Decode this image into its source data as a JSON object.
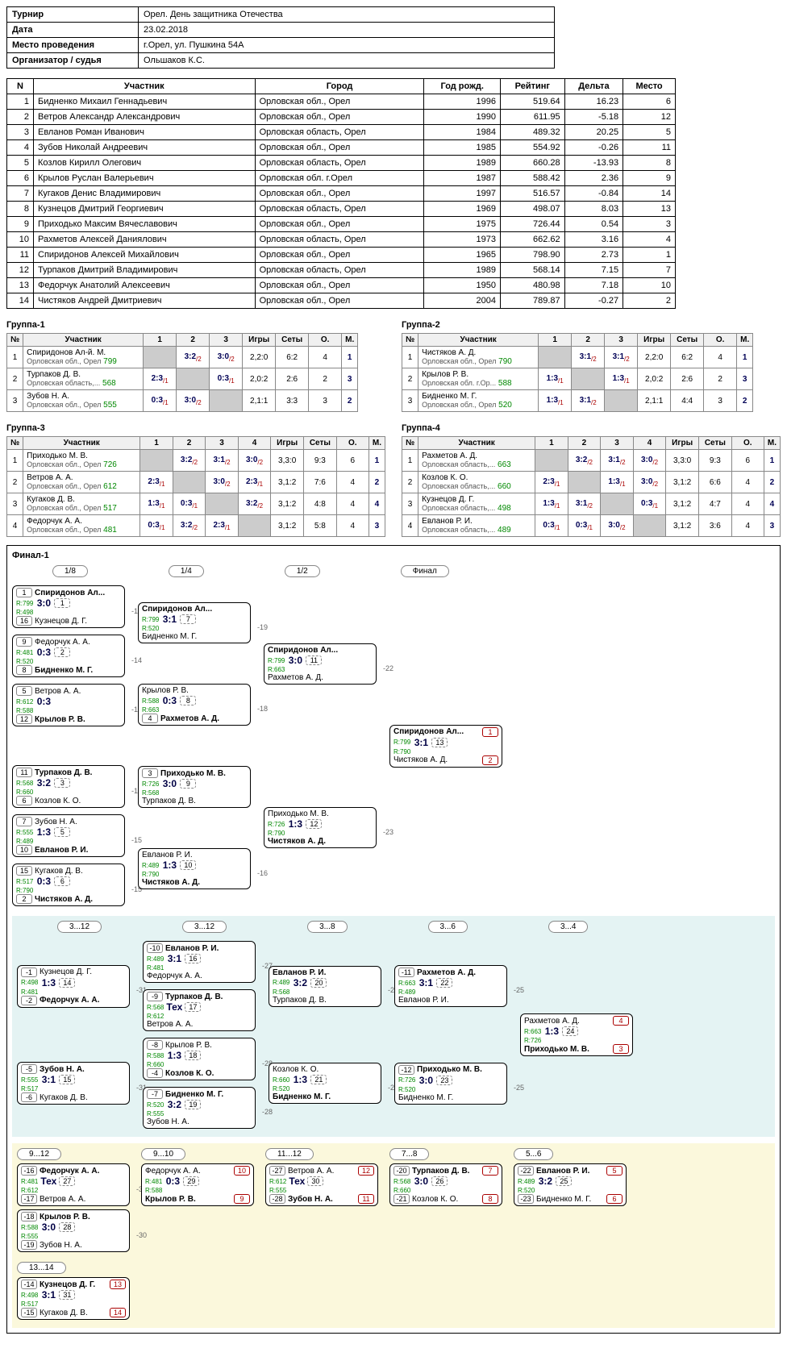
{
  "info": {
    "rows": [
      [
        "Турнир",
        "Орел. День защитника Отечества"
      ],
      [
        "Дата",
        "23.02.2018"
      ],
      [
        "Место проведения",
        "г.Орел, ул. Пушкина 54А"
      ],
      [
        "Организатор / судья",
        "Ольшаков К.С."
      ]
    ]
  },
  "participants": {
    "headers": [
      "N",
      "Участник",
      "Город",
      "Год рожд.",
      "Рейтинг",
      "Дельта",
      "Место"
    ],
    "rows": [
      [
        "1",
        "Бидненко Михаил Геннадьевич",
        "Орловская обл., Орел",
        "1996",
        "519.64",
        "16.23",
        "6"
      ],
      [
        "2",
        "Ветров Александр Александрович",
        "Орловская обл., Орел",
        "1990",
        "611.95",
        "-5.18",
        "12"
      ],
      [
        "3",
        "Евланов Роман Иванович",
        "Орловская область, Орел",
        "1984",
        "489.32",
        "20.25",
        "5"
      ],
      [
        "4",
        "Зубов Николай Андреевич",
        "Орловская обл., Орел",
        "1985",
        "554.92",
        "-0.26",
        "11"
      ],
      [
        "5",
        "Козлов Кирилл Олегович",
        "Орловская область, Орел",
        "1989",
        "660.28",
        "-13.93",
        "8"
      ],
      [
        "6",
        "Крылов Руслан Валерьевич",
        "Орловская обл. г.Орел",
        "1987",
        "588.42",
        "2.36",
        "9"
      ],
      [
        "7",
        "Кугаков Денис Владимирович",
        "Орловская обл., Орел",
        "1997",
        "516.57",
        "-0.84",
        "14"
      ],
      [
        "8",
        "Кузнецов Дмитрий Георгиевич",
        "Орловская область, Орел",
        "1969",
        "498.07",
        "8.03",
        "13"
      ],
      [
        "9",
        "Приходько Максим Вячеславович",
        "Орловская обл., Орел",
        "1975",
        "726.44",
        "0.54",
        "3"
      ],
      [
        "10",
        "Рахметов Алексей Даниялович",
        "Орловская область, Орел",
        "1973",
        "662.62",
        "3.16",
        "4"
      ],
      [
        "11",
        "Спиридонов Алексей Михайлович",
        "Орловская обл., Орел",
        "1965",
        "798.90",
        "2.73",
        "1"
      ],
      [
        "12",
        "Турпаков Дмитрий Владимирович",
        "Орловская область, Орел",
        "1989",
        "568.14",
        "7.15",
        "7"
      ],
      [
        "13",
        "Федорчук Анатолий Алексеевич",
        "Орловская обл., Орел",
        "1950",
        "480.98",
        "7.18",
        "10"
      ],
      [
        "14",
        "Чистяков Андрей Дмитриевич",
        "Орловская обл., Орел",
        "2004",
        "789.87",
        "-0.27",
        "2"
      ]
    ]
  },
  "groups": [
    {
      "title": "Группа-1",
      "cols": [
        "№",
        "Участник",
        "1",
        "2",
        "3",
        "Игры",
        "Сеты",
        "О.",
        "М."
      ],
      "rows": [
        {
          "n": "1",
          "name": "Спиридонов Ал-й. М.",
          "sub": "Орловская обл., Орел",
          "rat": "799",
          "cells": [
            "diag",
            "3:2/2",
            "3:0/2"
          ],
          "games": "2,2:0",
          "sets": "6:2",
          "pts": "4",
          "place": "1"
        },
        {
          "n": "2",
          "name": "Турпаков Д. В.",
          "sub": "Орловская область,...",
          "rat": "568",
          "cells": [
            "2:3/1",
            "diag",
            "0:3/1"
          ],
          "games": "2,0:2",
          "sets": "2:6",
          "pts": "2",
          "place": "3"
        },
        {
          "n": "3",
          "name": "Зубов Н. А.",
          "sub": "Орловская обл., Орел",
          "rat": "555",
          "cells": [
            "0:3/1",
            "3:0/2",
            "diag"
          ],
          "games": "2,1:1",
          "sets": "3:3",
          "pts": "3",
          "place": "2"
        }
      ]
    },
    {
      "title": "Группа-2",
      "cols": [
        "№",
        "Участник",
        "1",
        "2",
        "3",
        "Игры",
        "Сеты",
        "О.",
        "М."
      ],
      "rows": [
        {
          "n": "1",
          "name": "Чистяков А. Д.",
          "sub": "Орловская обл., Орел",
          "rat": "790",
          "cells": [
            "diag",
            "3:1/2",
            "3:1/2"
          ],
          "games": "2,2:0",
          "sets": "6:2",
          "pts": "4",
          "place": "1"
        },
        {
          "n": "2",
          "name": "Крылов Р. В.",
          "sub": "Орловская обл. г.Ор...",
          "rat": "588",
          "cells": [
            "1:3/1",
            "diag",
            "1:3/1"
          ],
          "games": "2,0:2",
          "sets": "2:6",
          "pts": "2",
          "place": "3"
        },
        {
          "n": "3",
          "name": "Бидненко М. Г.",
          "sub": "Орловская обл., Орел",
          "rat": "520",
          "cells": [
            "1:3/1",
            "3:1/2",
            "diag"
          ],
          "games": "2,1:1",
          "sets": "4:4",
          "pts": "3",
          "place": "2"
        }
      ]
    },
    {
      "title": "Группа-3",
      "cols": [
        "№",
        "Участник",
        "1",
        "2",
        "3",
        "4",
        "Игры",
        "Сеты",
        "О.",
        "М."
      ],
      "rows": [
        {
          "n": "1",
          "name": "Приходько М. В.",
          "sub": "Орловская обл., Орел",
          "rat": "726",
          "cells": [
            "diag",
            "3:2/2",
            "3:1/2",
            "3:0/2"
          ],
          "games": "3,3:0",
          "sets": "9:3",
          "pts": "6",
          "place": "1"
        },
        {
          "n": "2",
          "name": "Ветров А. А.",
          "sub": "Орловская обл., Орел",
          "rat": "612",
          "cells": [
            "2:3/1",
            "diag",
            "3:0/2",
            "2:3/1"
          ],
          "games": "3,1:2",
          "sets": "7:6",
          "pts": "4",
          "place": "2"
        },
        {
          "n": "3",
          "name": "Кугаков Д. В.",
          "sub": "Орловская обл., Орел",
          "rat": "517",
          "cells": [
            "1:3/1",
            "0:3/1",
            "diag",
            "3:2/2"
          ],
          "games": "3,1:2",
          "sets": "4:8",
          "pts": "4",
          "place": "4"
        },
        {
          "n": "4",
          "name": "Федорчук А. А.",
          "sub": "Орловская обл., Орел",
          "rat": "481",
          "cells": [
            "0:3/1",
            "3:2/2",
            "2:3/1",
            "diag"
          ],
          "games": "3,1:2",
          "sets": "5:8",
          "pts": "4",
          "place": "3"
        }
      ]
    },
    {
      "title": "Группа-4",
      "cols": [
        "№",
        "Участник",
        "1",
        "2",
        "3",
        "4",
        "Игры",
        "Сеты",
        "О.",
        "М."
      ],
      "rows": [
        {
          "n": "1",
          "name": "Рахметов А. Д.",
          "sub": "Орловская область,...",
          "rat": "663",
          "cells": [
            "diag",
            "3:2/2",
            "3:1/2",
            "3:0/2"
          ],
          "games": "3,3:0",
          "sets": "9:3",
          "pts": "6",
          "place": "1"
        },
        {
          "n": "2",
          "name": "Козлов К. О.",
          "sub": "Орловская область,...",
          "rat": "660",
          "cells": [
            "2:3/1",
            "diag",
            "1:3/1",
            "3:0/2"
          ],
          "games": "3,1:2",
          "sets": "6:6",
          "pts": "4",
          "place": "2"
        },
        {
          "n": "3",
          "name": "Кузнецов Д. Г.",
          "sub": "Орловская область,...",
          "rat": "498",
          "cells": [
            "1:3/1",
            "3:1/2",
            "diag",
            "0:3/1"
          ],
          "games": "3,1:2",
          "sets": "4:7",
          "pts": "4",
          "place": "4"
        },
        {
          "n": "4",
          "name": "Евланов Р. И.",
          "sub": "Орловская область,...",
          "rat": "489",
          "cells": [
            "0:3/1",
            "0:3/1",
            "3:0/2",
            "diag"
          ],
          "games": "3,1:2",
          "sets": "3:6",
          "pts": "4",
          "place": "3"
        }
      ]
    }
  ],
  "final": {
    "title": "Финал-1",
    "rounds": [
      "1/8",
      "1/4",
      "1/2",
      "Финал"
    ],
    "r8": [
      {
        "s1": "1",
        "p1": "Спиридонов Ал...",
        "r1": "R:799",
        "s2": "16",
        "p2": "Кузнецов Д. Г.",
        "r2": "R:498",
        "sc": "3:0",
        "mn": "1",
        "tag": "-14",
        "w": 1
      },
      {
        "s1": "9",
        "p1": "Федорчук А. А.",
        "r1": "R:481",
        "s2": "8",
        "p2": "Бидненко М. Г.",
        "r2": "R:520",
        "sc": "0:3",
        "mn": "2",
        "tag": "-14",
        "w": 2
      },
      {
        "s1": "5",
        "p1": "Ветров А. А.",
        "r1": "R:612",
        "s2": "12",
        "p2": "Крылов Р. В.",
        "r2": "R:588",
        "sc": "0:3",
        "mn": "",
        "tag": "-17",
        "w": 2
      },
      {
        "s1": "",
        "p1": "",
        "r1": "",
        "s2": "4",
        "p2": "",
        "r2": "",
        "sc": "",
        "mn": "",
        "tag": "",
        "hidden": true
      },
      {
        "s1": "11",
        "p1": "Турпаков Д. В.",
        "r1": "R:568",
        "s2": "6",
        "p2": "Козлов К. О.",
        "r2": "R:660",
        "sc": "3:2",
        "mn": "3",
        "tag": "-18",
        "w": 1
      },
      {
        "s1": "7",
        "p1": "Зубов Н. А.",
        "r1": "R:555",
        "s2": "10",
        "p2": "Евланов Р. И.",
        "r2": "R:489",
        "sc": "1:3",
        "mn": "5",
        "tag": "-15",
        "w": 2
      },
      {
        "s1": "15",
        "p1": "Кугаков Д. В.",
        "r1": "R:517",
        "s2": "2",
        "p2": "Чистяков А. Д.",
        "r2": "R:790",
        "sc": "0:3",
        "mn": "6",
        "tag": "-15",
        "w": 2
      }
    ],
    "r4": [
      {
        "p1": "Спиридонов Ал...",
        "r1": "R:799",
        "p2": "Бидненко М. Г.",
        "r2": "R:520",
        "sc": "3:1",
        "mn": "7",
        "tag": "-19",
        "w": 1
      },
      {
        "p1": "Крылов Р. В.",
        "r1": "R:588",
        "p2": "Рахметов А. Д.",
        "r2": "R:663",
        "sc": "0:3",
        "mn": "8",
        "tag": "-18",
        "s2": "4",
        "w": 2
      },
      {
        "p1": "Приходько М. В.",
        "r1": "R:726",
        "p2": "Турпаков Д. В.",
        "r2": "R:568",
        "sc": "3:0",
        "mn": "9",
        "tag": "",
        "s1": "3",
        "w": 1
      },
      {
        "p1": "Евланов Р. И.",
        "r1": "R:489",
        "p2": "Чистяков А. Д.",
        "r2": "R:790",
        "sc": "1:3",
        "mn": "10",
        "tag": "-16",
        "w": 2
      }
    ],
    "r2": [
      {
        "p1": "Спиридонов Ал...",
        "r1": "R:799",
        "p2": "Рахметов А. Д.",
        "r2": "R:663",
        "sc": "3:0",
        "mn": "11",
        "tag": "-22",
        "w": 1
      },
      {
        "p1": "Приходько М. В.",
        "r1": "R:726",
        "p2": "Чистяков А. Д.",
        "r2": "R:790",
        "sc": "1:3",
        "mn": "12",
        "tag": "-23",
        "w": 2
      }
    ],
    "rf": [
      {
        "p1": "Спиридонов Ал...",
        "r1": "R:799",
        "p2": "Чистяков А. Д.",
        "r2": "R:790",
        "sc": "3:1",
        "mn": "13",
        "w": 1,
        "pl1": "1",
        "pl2": "2"
      }
    ],
    "cons1": {
      "hdrs": [
        "3...12",
        "3...12",
        "3...8",
        "3...6",
        "3...4"
      ],
      "c1": [
        {
          "s1": "-1",
          "p1": "Кузнецов Д. Г.",
          "r1": "R:498",
          "s2": "-2",
          "p2": "Федорчук А. А.",
          "r2": "R:481",
          "sc": "1:3",
          "mn": "14",
          "tag": "-31",
          "w": 2
        },
        {
          "s1": "-5",
          "p1": "Зубов Н. А.",
          "r1": "R:555",
          "s2": "-6",
          "p2": "Кугаков Д. В.",
          "r2": "R:517",
          "sc": "3:1",
          "mn": "15",
          "tag": "-31",
          "w": 1
        }
      ],
      "c2": [
        {
          "s1": "-10",
          "p1": "Евланов Р. И.",
          "r1": "R:489",
          "p2": "Федорчук А. А.",
          "r2": "R:481",
          "sc": "3:1",
          "mn": "16",
          "tag": "-27",
          "w": 1
        },
        {
          "s1": "-9",
          "p1": "Турпаков Д. В.",
          "r1": "R:568",
          "p2": "Ветров А. А.",
          "r2": "R:612",
          "sc": "Тех",
          "mn": "17",
          "tag": "",
          "w": 1
        },
        {
          "s1": "-8",
          "p1": "Крылов Р. В.",
          "r1": "R:588",
          "s2": "-4",
          "p2": "Козлов К. О.",
          "r2": "R:660",
          "sc": "1:3",
          "mn": "18",
          "tag": "-28",
          "w": 2
        },
        {
          "s1": "-7",
          "p1": "Бидненко М. Г.",
          "r1": "R:520",
          "p2": "Зубов Н. А.",
          "r2": "R:555",
          "sc": "3:2",
          "mn": "19",
          "tag": "-28",
          "w": 1
        }
      ],
      "c3": [
        {
          "p1": "Евланов Р. И.",
          "r1": "R:489",
          "p2": "Турпаков Д. В.",
          "r2": "R:568",
          "sc": "3:2",
          "mn": "20",
          "tag": "-26",
          "w": 1
        },
        {
          "p1": "Козлов К. О.",
          "r1": "R:660",
          "p2": "Бидненко М. Г.",
          "r2": "R:520",
          "sc": "1:3",
          "mn": "21",
          "tag": "-26",
          "w": 2
        }
      ],
      "c4": [
        {
          "s1": "-11",
          "p1": "Рахметов А. Д.",
          "r1": "R:663",
          "p2": "Евланов Р. И.",
          "r2": "R:489",
          "sc": "3:1",
          "mn": "22",
          "tag": "-25",
          "w": 1
        },
        {
          "s1": "-12",
          "p1": "Приходько М. В.",
          "r1": "R:726",
          "p2": "Бидненко М. Г.",
          "r2": "R:520",
          "sc": "3:0",
          "mn": "23",
          "tag": "-25",
          "w": 1
        }
      ],
      "c5": [
        {
          "p1": "Рахметов А. Д.",
          "r1": "R:663",
          "p2": "Приходько М. В.",
          "r2": "R:726",
          "sc": "1:3",
          "mn": "24",
          "w": 2,
          "pl1": "4",
          "pl2": "3"
        }
      ]
    },
    "cons2": [
      {
        "title": "9...12",
        "matches": [
          {
            "s1": "-16",
            "p1": "Федорчук А. А.",
            "r1": "R:481",
            "s2": "-17",
            "p2": "Ветров А. А.",
            "r2": "R:612",
            "sc": "Тех",
            "mn": "27",
            "tag": "-30",
            "w": 1
          },
          {
            "s1": "-18",
            "p1": "Крылов Р. В.",
            "r1": "R:588",
            "s2": "-19",
            "p2": "Зубов Н. А.",
            "r2": "R:555",
            "sc": "3:0",
            "mn": "28",
            "tag": "-30",
            "w": 1
          }
        ]
      },
      {
        "title": "9...10",
        "matches": [
          {
            "p1": "Федорчук А. А.",
            "r1": "R:481",
            "p2": "Крылов Р. В.",
            "r2": "R:588",
            "sc": "0:3",
            "mn": "29",
            "w": 2,
            "pl1": "10",
            "pl2": "9"
          }
        ]
      },
      {
        "title": "11...12",
        "matches": [
          {
            "s1": "-27",
            "p1": "Ветров А. А.",
            "r1": "R:612",
            "s2": "-28",
            "p2": "Зубов Н. А.",
            "r2": "R:555",
            "sc": "Тех",
            "mn": "30",
            "w": 2,
            "pl1": "12",
            "pl2": "11"
          }
        ]
      },
      {
        "title": "7...8",
        "matches": [
          {
            "s1": "-20",
            "p1": "Турпаков Д. В.",
            "r1": "R:568",
            "s2": "-21",
            "p2": "Козлов К. О.",
            "r2": "R:660",
            "sc": "3:0",
            "mn": "26",
            "w": 1,
            "pl1": "7",
            "pl2": "8"
          }
        ]
      },
      {
        "title": "5...6",
        "matches": [
          {
            "s1": "-22",
            "p1": "Евланов Р. И.",
            "r1": "R:489",
            "s2": "-23",
            "p2": "Бидненко М. Г.",
            "r2": "R:520",
            "sc": "3:2",
            "mn": "25",
            "w": 1,
            "pl1": "5",
            "pl2": "6"
          }
        ]
      }
    ],
    "cons3": {
      "title": "13...14",
      "matches": [
        {
          "s1": "-14",
          "p1": "Кузнецов Д. Г.",
          "r1": "R:498",
          "s2": "-15",
          "p2": "Кугаков Д. В.",
          "r2": "R:517",
          "sc": "3:1",
          "mn": "31",
          "w": 1,
          "pl1": "13",
          "pl2": "14"
        }
      ]
    }
  }
}
